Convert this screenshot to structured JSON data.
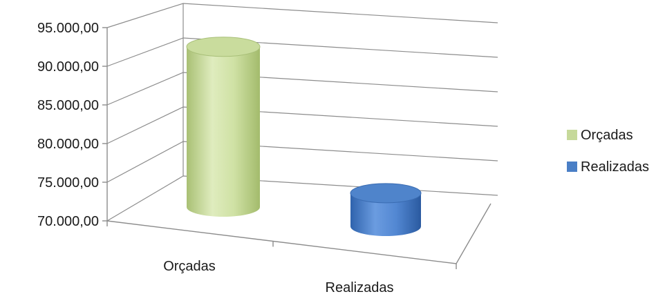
{
  "chart_data": {
    "type": "bar",
    "style": "3d-cylinder",
    "categories": [
      "Orçadas",
      "Realizadas"
    ],
    "series": [
      {
        "name": "Orçadas",
        "values": [
          92000,
          null
        ],
        "color": "#c6d99a"
      },
      {
        "name": "Realizadas",
        "values": [
          null,
          74500
        ],
        "color": "#4a7fc6"
      }
    ],
    "yticks": [
      "70.000,00",
      "75.000,00",
      "80.000,00",
      "85.000,00",
      "90.000,00",
      "95.000,00"
    ],
    "ylim": [
      70000,
      95000
    ],
    "grid": true,
    "legend_position": "right"
  }
}
